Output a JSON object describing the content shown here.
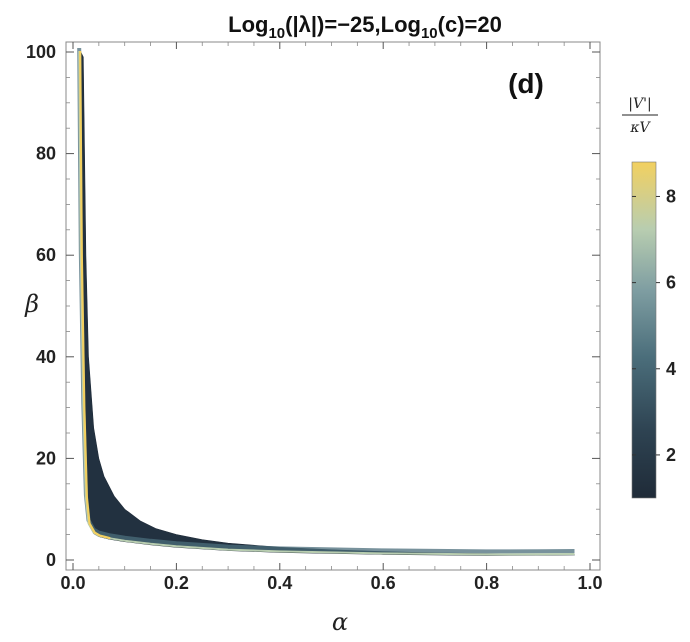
{
  "chart_data": {
    "type": "density",
    "title_parts": {
      "a": "Log",
      "a_sub": "10",
      "b": "(|λ|)=−25,Log",
      "b_sub": "10",
      "c": "(c)=20"
    },
    "panel_label": "(d)",
    "xlabel": "α",
    "ylabel": "β",
    "xlim": [
      0.0,
      1.0
    ],
    "ylim": [
      0,
      100
    ],
    "x_ticks": [
      "0.0",
      "0.2",
      "0.4",
      "0.6",
      "0.8",
      "1.0"
    ],
    "y_ticks": [
      "0",
      "20",
      "40",
      "60",
      "80",
      "100"
    ],
    "region": {
      "upper_edge": [
        [
          0.015,
          100
        ],
        [
          0.02,
          99
        ],
        [
          0.025,
          60
        ],
        [
          0.03,
          40
        ],
        [
          0.04,
          26
        ],
        [
          0.05,
          20
        ],
        [
          0.06,
          16.5
        ],
        [
          0.08,
          12.5
        ],
        [
          0.1,
          10
        ],
        [
          0.13,
          7.7
        ],
        [
          0.16,
          6.2
        ],
        [
          0.2,
          5
        ],
        [
          0.25,
          4
        ],
        [
          0.3,
          3.3
        ],
        [
          0.4,
          2.5
        ],
        [
          0.5,
          2.0
        ],
        [
          0.6,
          1.65
        ],
        [
          0.7,
          1.4
        ],
        [
          0.8,
          1.25
        ],
        [
          0.9,
          1.1
        ],
        [
          0.97,
          1.0
        ]
      ],
      "lower_edge": [
        [
          0.97,
          0.98
        ],
        [
          0.9,
          0.95
        ],
        [
          0.8,
          0.9
        ],
        [
          0.7,
          1.0
        ],
        [
          0.6,
          1.1
        ],
        [
          0.5,
          1.3
        ],
        [
          0.4,
          1.5
        ],
        [
          0.3,
          1.85
        ],
        [
          0.2,
          2.5
        ],
        [
          0.15,
          3.0
        ],
        [
          0.1,
          3.6
        ],
        [
          0.07,
          4.1
        ],
        [
          0.05,
          4.6
        ],
        [
          0.04,
          5.2
        ],
        [
          0.03,
          7
        ],
        [
          0.025,
          12
        ],
        [
          0.02,
          30
        ],
        [
          0.015,
          60
        ],
        [
          0.012,
          100
        ]
      ]
    },
    "colorbar": {
      "title_top": "|V'|",
      "title_bottom": "κV",
      "range": [
        1,
        8.8
      ],
      "ticks": [
        "2",
        "4",
        "6",
        "8"
      ],
      "tick_values": [
        2,
        4,
        6,
        8
      ],
      "colors": [
        "#1f2b38",
        "#2e4352",
        "#4b6e7b",
        "#7f9ea2",
        "#b8cdb0",
        "#f2d060"
      ]
    }
  }
}
